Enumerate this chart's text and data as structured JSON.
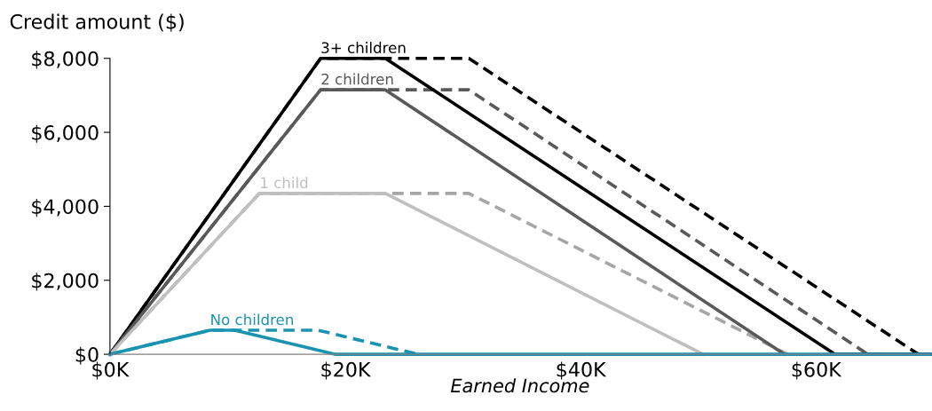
{
  "chart_data": {
    "type": "line",
    "ylabel": "Credit amount ($)",
    "xlabel": "Earned Income",
    "xlim": [
      0,
      69700
    ],
    "ylim": [
      0,
      8000
    ],
    "xticks": [
      {
        "value": 0,
        "label": "$0K"
      },
      {
        "value": 20000,
        "label": "$20K"
      },
      {
        "value": 40000,
        "label": "$40K"
      },
      {
        "value": 60000,
        "label": "$60K"
      }
    ],
    "yticks": [
      {
        "value": 0,
        "label": "$0"
      },
      {
        "value": 2000,
        "label": "$2,000"
      },
      {
        "value": 4000,
        "label": "$4,000"
      },
      {
        "value": 6000,
        "label": "$6,000"
      },
      {
        "value": 8000,
        "label": "$8,000"
      }
    ],
    "grid": false,
    "legend": false,
    "marker": "none",
    "series": [
      {
        "color": "#000000",
        "line_style": "dashed",
        "x": [
          0,
          17900,
          30500,
          68700
        ],
        "values": [
          0,
          8000,
          8000,
          0
        ]
      },
      {
        "color": "#595959",
        "line_style": "dashed",
        "x": [
          0,
          17900,
          30500,
          64400,
          69700
        ],
        "values": [
          0,
          7150,
          7150,
          0,
          0
        ]
      },
      {
        "color": "#a6a6a6",
        "line_style": "dashed",
        "x": [
          0,
          12700,
          30500,
          57600
        ],
        "values": [
          0,
          4350,
          4350,
          0
        ]
      },
      {
        "color": "#1a93b0",
        "line_style": "dashed",
        "x": [
          0,
          8500,
          17700,
          26200
        ],
        "values": [
          0,
          650,
          650,
          0
        ]
      },
      {
        "name": "3+ children",
        "color": "#000000",
        "line_style": "solid",
        "x": [
          0,
          17900,
          23400,
          61600,
          69700
        ],
        "values": [
          0,
          8000,
          8000,
          0,
          0
        ]
      },
      {
        "name": "2 children",
        "color": "#595959",
        "line_style": "solid",
        "x": [
          0,
          17900,
          23400,
          57300
        ],
        "values": [
          0,
          7150,
          7150,
          0
        ]
      },
      {
        "name": "1 child",
        "color": "#bfbfbf",
        "line_style": "solid",
        "x": [
          0,
          12700,
          23400,
          50400
        ],
        "values": [
          0,
          4350,
          4350,
          0
        ]
      },
      {
        "name": "No children",
        "color": "#1a93b0",
        "line_style": "solid",
        "x": [
          0,
          8500,
          10600,
          19100,
          69700
        ],
        "values": [
          0,
          650,
          650,
          0,
          0
        ]
      }
    ]
  }
}
